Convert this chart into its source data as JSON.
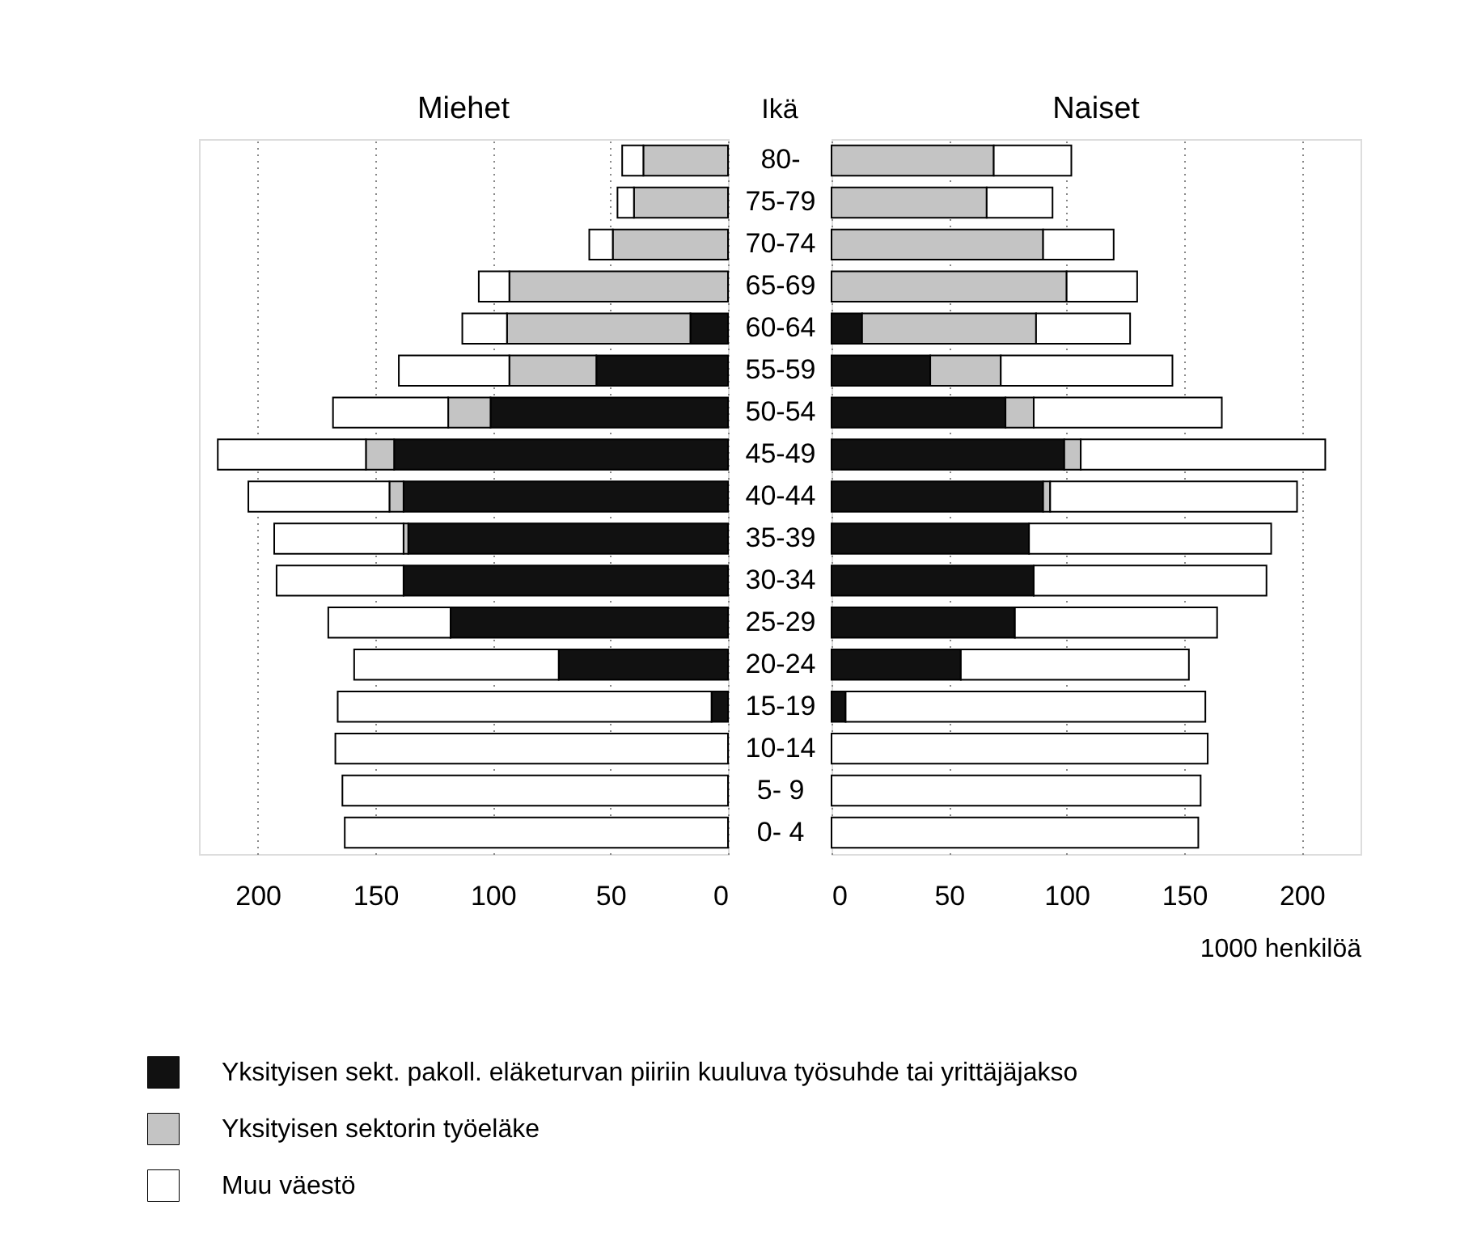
{
  "chart_data": [
    {
      "type": "bar",
      "orientation": "horizontal",
      "stacked": true,
      "title": "Miehet",
      "tick_labels": "x",
      "grid": "x",
      "legend": "bottom",
      "xlim": [
        225,
        0
      ],
      "xticks": [
        200,
        150,
        100,
        50,
        0
      ],
      "series": [
        {
          "name": "Yksityisen sekt. pakoll. eläketurvan piiriin kuuluva työsuhde tai yrittäjäjakso",
          "color": "#111111",
          "values": [
            0,
            0,
            0,
            0,
            16,
            56,
            101,
            142,
            138,
            136,
            138,
            118,
            72,
            7,
            0,
            0,
            0
          ]
        },
        {
          "name": "Yksityisen sektorin työeläke",
          "color": "#c4c4c4",
          "values": [
            36,
            40,
            49,
            93,
            78,
            37,
            18,
            12,
            6,
            2,
            0,
            0,
            0,
            0,
            0,
            0,
            0
          ]
        },
        {
          "name": "Muu väestö",
          "color": "#ffffff",
          "values": [
            9,
            7,
            10,
            13,
            19,
            47,
            49,
            63,
            60,
            55,
            54,
            52,
            87,
            159,
            167,
            164,
            163
          ]
        }
      ]
    },
    {
      "type": "bar",
      "orientation": "horizontal",
      "stacked": true,
      "title": "Naiset",
      "ylabel": "Ikä",
      "xlabel": "1000 henkilöä",
      "grid": "x",
      "categories": [
        "80-",
        "75-79",
        "70-74",
        "65-69",
        "60-64",
        "55-59",
        "50-54",
        "45-49",
        "40-44",
        "35-39",
        "30-34",
        "25-29",
        "20-24",
        "15-19",
        "10-14",
        "5- 9",
        "0- 4"
      ],
      "xlim": [
        0,
        225
      ],
      "xticks": [
        0,
        50,
        100,
        150,
        200
      ],
      "series": [
        {
          "color": "#111111",
          "values": [
            0,
            0,
            0,
            0,
            13,
            42,
            74,
            99,
            90,
            84,
            86,
            78,
            55,
            6,
            0,
            0,
            0
          ]
        },
        {
          "color": "#c4c4c4",
          "values": [
            69,
            66,
            90,
            100,
            74,
            30,
            12,
            7,
            3,
            0,
            0,
            0,
            0,
            0,
            0,
            0,
            0
          ]
        },
        {
          "color": "#ffffff",
          "values": [
            33,
            28,
            30,
            30,
            40,
            73,
            80,
            104,
            105,
            103,
            99,
            86,
            97,
            153,
            160,
            157,
            156
          ]
        }
      ]
    }
  ]
}
